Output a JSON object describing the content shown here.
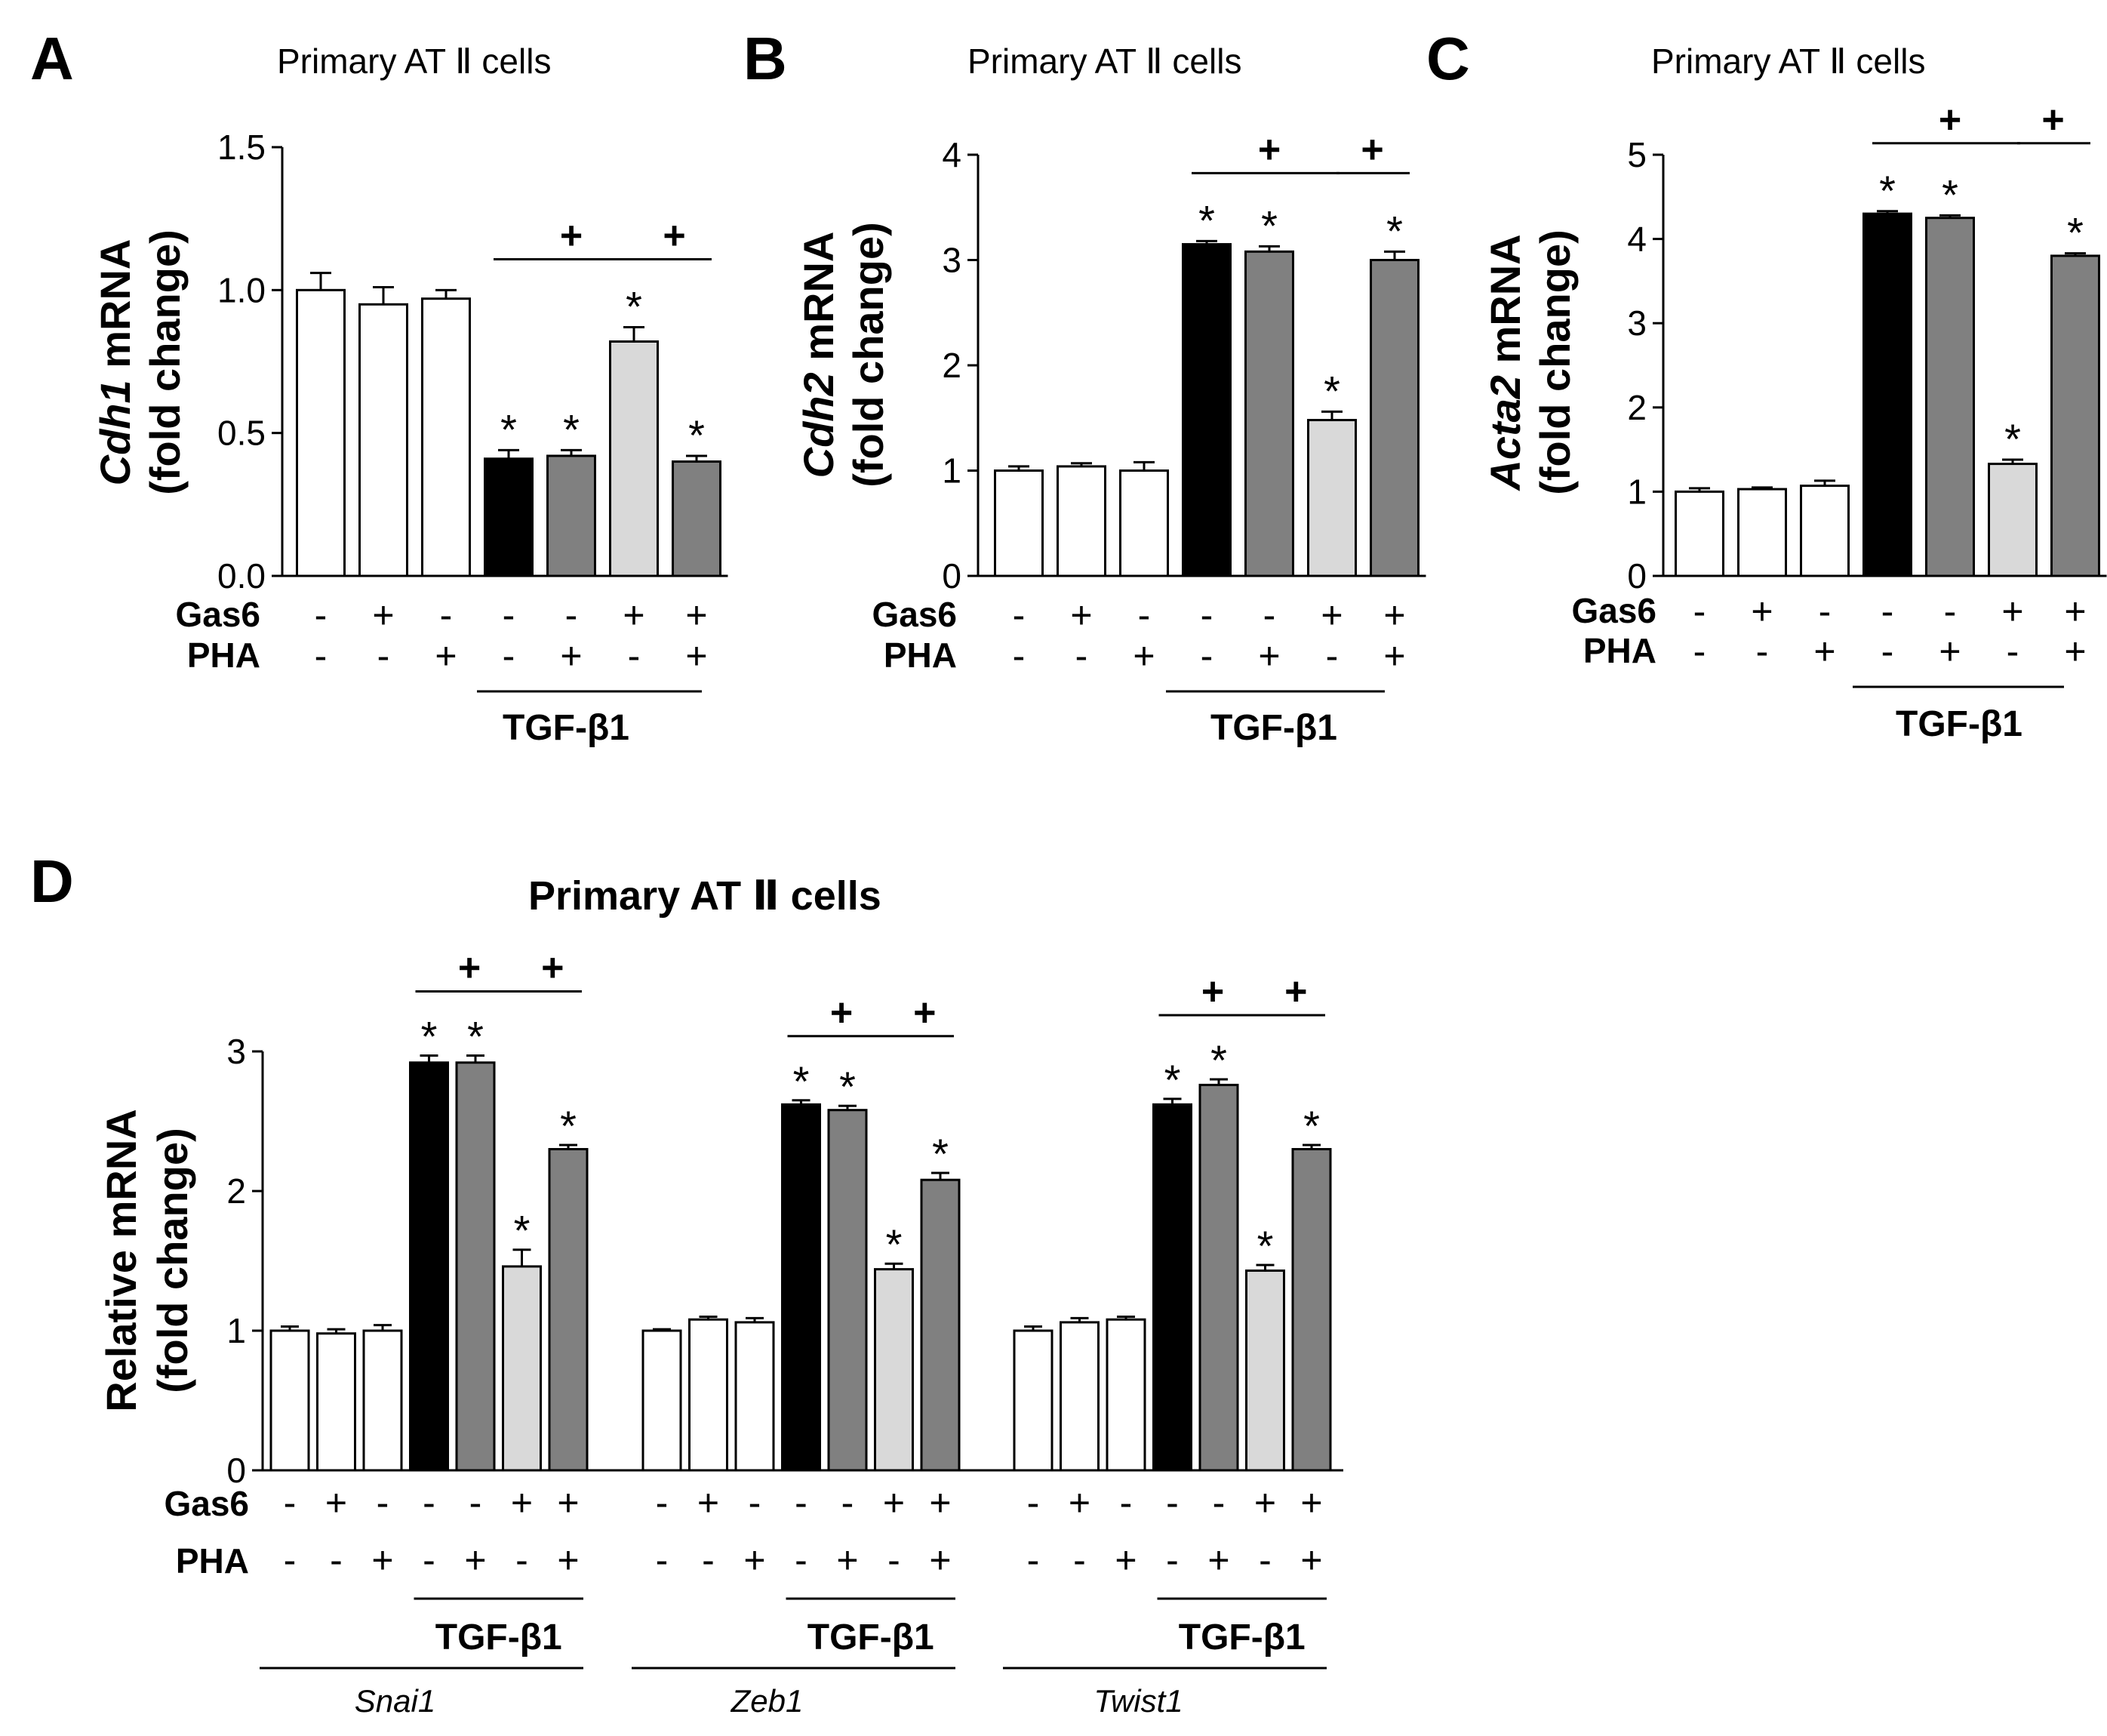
{
  "figure": {
    "panels": {
      "A": {
        "letter": "A",
        "title": "Primary AT  Ⅱ cells",
        "ylabel_gene": "Cdh1",
        "ylabel_rest": " mRNA",
        "ylabel_2": "(fold change)"
      },
      "B": {
        "letter": "B",
        "title": "Primary AT  Ⅱ cells",
        "ylabel_gene": "Cdh2",
        "ylabel_rest": " mRNA",
        "ylabel_2": "(fold change)"
      },
      "C": {
        "letter": "C",
        "title": "Primary AT  Ⅱ cells",
        "ylabel_gene": "Acta2",
        "ylabel_rest": " mRNA",
        "ylabel_2": "(fold change)"
      },
      "D": {
        "letter": "D",
        "title": "Primary AT Ⅱ cells",
        "ylabel_1": "Relative mRNA",
        "ylabel_2": "(fold change)"
      }
    },
    "row_labels": {
      "gas6": "Gas6",
      "pha": "PHA"
    },
    "treatment_label": "TGF-β1"
  },
  "colors": {
    "white": "#ffffff",
    "black": "#000000",
    "dark_gray": "#808080",
    "light_gray": "#d9d9d9"
  },
  "chart_data": [
    {
      "type": "bar",
      "panel": "A",
      "title": "Primary AT  Ⅱ cells",
      "ylabel": "Cdh1 mRNA (fold change)",
      "ylim": [
        0,
        1.5
      ],
      "yticks": [
        "0.0",
        "0.5",
        "1.0",
        "1.5"
      ],
      "gas6": [
        "-",
        "+",
        "-",
        "-",
        "-",
        "+",
        "+"
      ],
      "pha": [
        "-",
        "-",
        "+",
        "-",
        "+",
        "-",
        "+"
      ],
      "tgf_b1": [
        "",
        "",
        "",
        "+",
        "+",
        "+",
        "+"
      ],
      "bar_colors": [
        "white",
        "white",
        "white",
        "black",
        "dark_gray",
        "light_gray",
        "dark_gray"
      ],
      "values": [
        1.0,
        0.95,
        0.97,
        0.41,
        0.42,
        0.82,
        0.4
      ],
      "errors": [
        0.06,
        0.06,
        0.03,
        0.03,
        0.02,
        0.05,
        0.02
      ],
      "asterisk": [
        "",
        "",
        "",
        "*",
        "*",
        "*",
        "*"
      ],
      "significance_brackets": [
        {
          "from": 3,
          "to": 5,
          "symbol": "+"
        },
        {
          "from": 5,
          "to": 6,
          "symbol": "+"
        }
      ]
    },
    {
      "type": "bar",
      "panel": "B",
      "title": "Primary AT  Ⅱ cells",
      "ylabel": "Cdh2 mRNA (fold change)",
      "ylim": [
        0,
        4
      ],
      "yticks": [
        "0",
        "1",
        "2",
        "3",
        "4"
      ],
      "gas6": [
        "-",
        "+",
        "-",
        "-",
        "-",
        "+",
        "+"
      ],
      "pha": [
        "-",
        "-",
        "+",
        "-",
        "+",
        "-",
        "+"
      ],
      "tgf_b1": [
        "",
        "",
        "",
        "+",
        "+",
        "+",
        "+"
      ],
      "bar_colors": [
        "white",
        "white",
        "white",
        "black",
        "dark_gray",
        "light_gray",
        "dark_gray"
      ],
      "values": [
        1.0,
        1.04,
        1.0,
        3.15,
        3.08,
        1.48,
        3.0
      ],
      "errors": [
        0.04,
        0.03,
        0.08,
        0.03,
        0.05,
        0.08,
        0.08
      ],
      "asterisk": [
        "",
        "",
        "",
        "*",
        "*",
        "*",
        "*"
      ],
      "significance_brackets": [
        {
          "from": 3,
          "to": 5,
          "symbol": "+"
        },
        {
          "from": 5,
          "to": 6,
          "symbol": "+"
        }
      ]
    },
    {
      "type": "bar",
      "panel": "C",
      "title": "Primary AT  Ⅱ cells",
      "ylabel": "Acta2 mRNA (fold change)",
      "ylim": [
        0,
        5
      ],
      "yticks": [
        "0",
        "1",
        "2",
        "3",
        "4",
        "5"
      ],
      "gas6": [
        "-",
        "+",
        "-",
        "-",
        "-",
        "+",
        "+"
      ],
      "pha": [
        "-",
        "-",
        "+",
        "-",
        "+",
        "-",
        "+"
      ],
      "tgf_b1": [
        "",
        "",
        "",
        "+",
        "+",
        "+",
        "+"
      ],
      "bar_colors": [
        "white",
        "white",
        "white",
        "black",
        "dark_gray",
        "light_gray",
        "dark_gray"
      ],
      "values": [
        1.0,
        1.03,
        1.07,
        4.3,
        4.25,
        1.33,
        3.8
      ],
      "errors": [
        0.04,
        0.02,
        0.06,
        0.03,
        0.03,
        0.05,
        0.03
      ],
      "asterisk": [
        "",
        "",
        "",
        "*",
        "*",
        "*",
        "*"
      ],
      "significance_brackets": [
        {
          "from": 3,
          "to": 5,
          "symbol": "+"
        },
        {
          "from": 5,
          "to": 6,
          "symbol": "+"
        }
      ]
    },
    {
      "type": "bar",
      "panel": "D",
      "title": "Primary AT Ⅱ cells",
      "ylabel": "Relative mRNA (fold change)",
      "ylim": [
        0,
        3
      ],
      "yticks": [
        "0",
        "1",
        "2",
        "3"
      ],
      "genes": [
        "Snai1",
        "Zeb1",
        "Twist1"
      ],
      "gas6": [
        "-",
        "+",
        "-",
        "-",
        "-",
        "+",
        "+"
      ],
      "pha": [
        "-",
        "-",
        "+",
        "-",
        "+",
        "-",
        "+"
      ],
      "tgf_b1": [
        "",
        "",
        "",
        "+",
        "+",
        "+",
        "+"
      ],
      "bar_colors": [
        "white",
        "white",
        "white",
        "black",
        "dark_gray",
        "light_gray",
        "dark_gray"
      ],
      "series": [
        {
          "name": "Snai1",
          "values": [
            1.0,
            0.98,
            1.0,
            2.92,
            2.92,
            1.46,
            2.3
          ],
          "errors": [
            0.03,
            0.03,
            0.04,
            0.05,
            0.05,
            0.12,
            0.03
          ],
          "asterisk": [
            "",
            "",
            "",
            "*",
            "*",
            "*",
            "*"
          ]
        },
        {
          "name": "Zeb1",
          "values": [
            1.0,
            1.08,
            1.06,
            2.62,
            2.58,
            1.44,
            2.08
          ],
          "errors": [
            0.01,
            0.02,
            0.03,
            0.03,
            0.03,
            0.04,
            0.05
          ],
          "asterisk": [
            "",
            "",
            "",
            "*",
            "*",
            "*",
            "*"
          ]
        },
        {
          "name": "Twist1",
          "values": [
            1.0,
            1.06,
            1.08,
            2.62,
            2.76,
            1.43,
            2.3
          ],
          "errors": [
            0.03,
            0.03,
            0.02,
            0.04,
            0.04,
            0.04,
            0.03
          ],
          "asterisk": [
            "",
            "",
            "",
            "*",
            "*",
            "*",
            "*"
          ]
        }
      ],
      "significance_brackets": [
        {
          "from": 3,
          "to": 5,
          "symbol": "+"
        },
        {
          "from": 5,
          "to": 6,
          "symbol": "+"
        }
      ]
    }
  ]
}
